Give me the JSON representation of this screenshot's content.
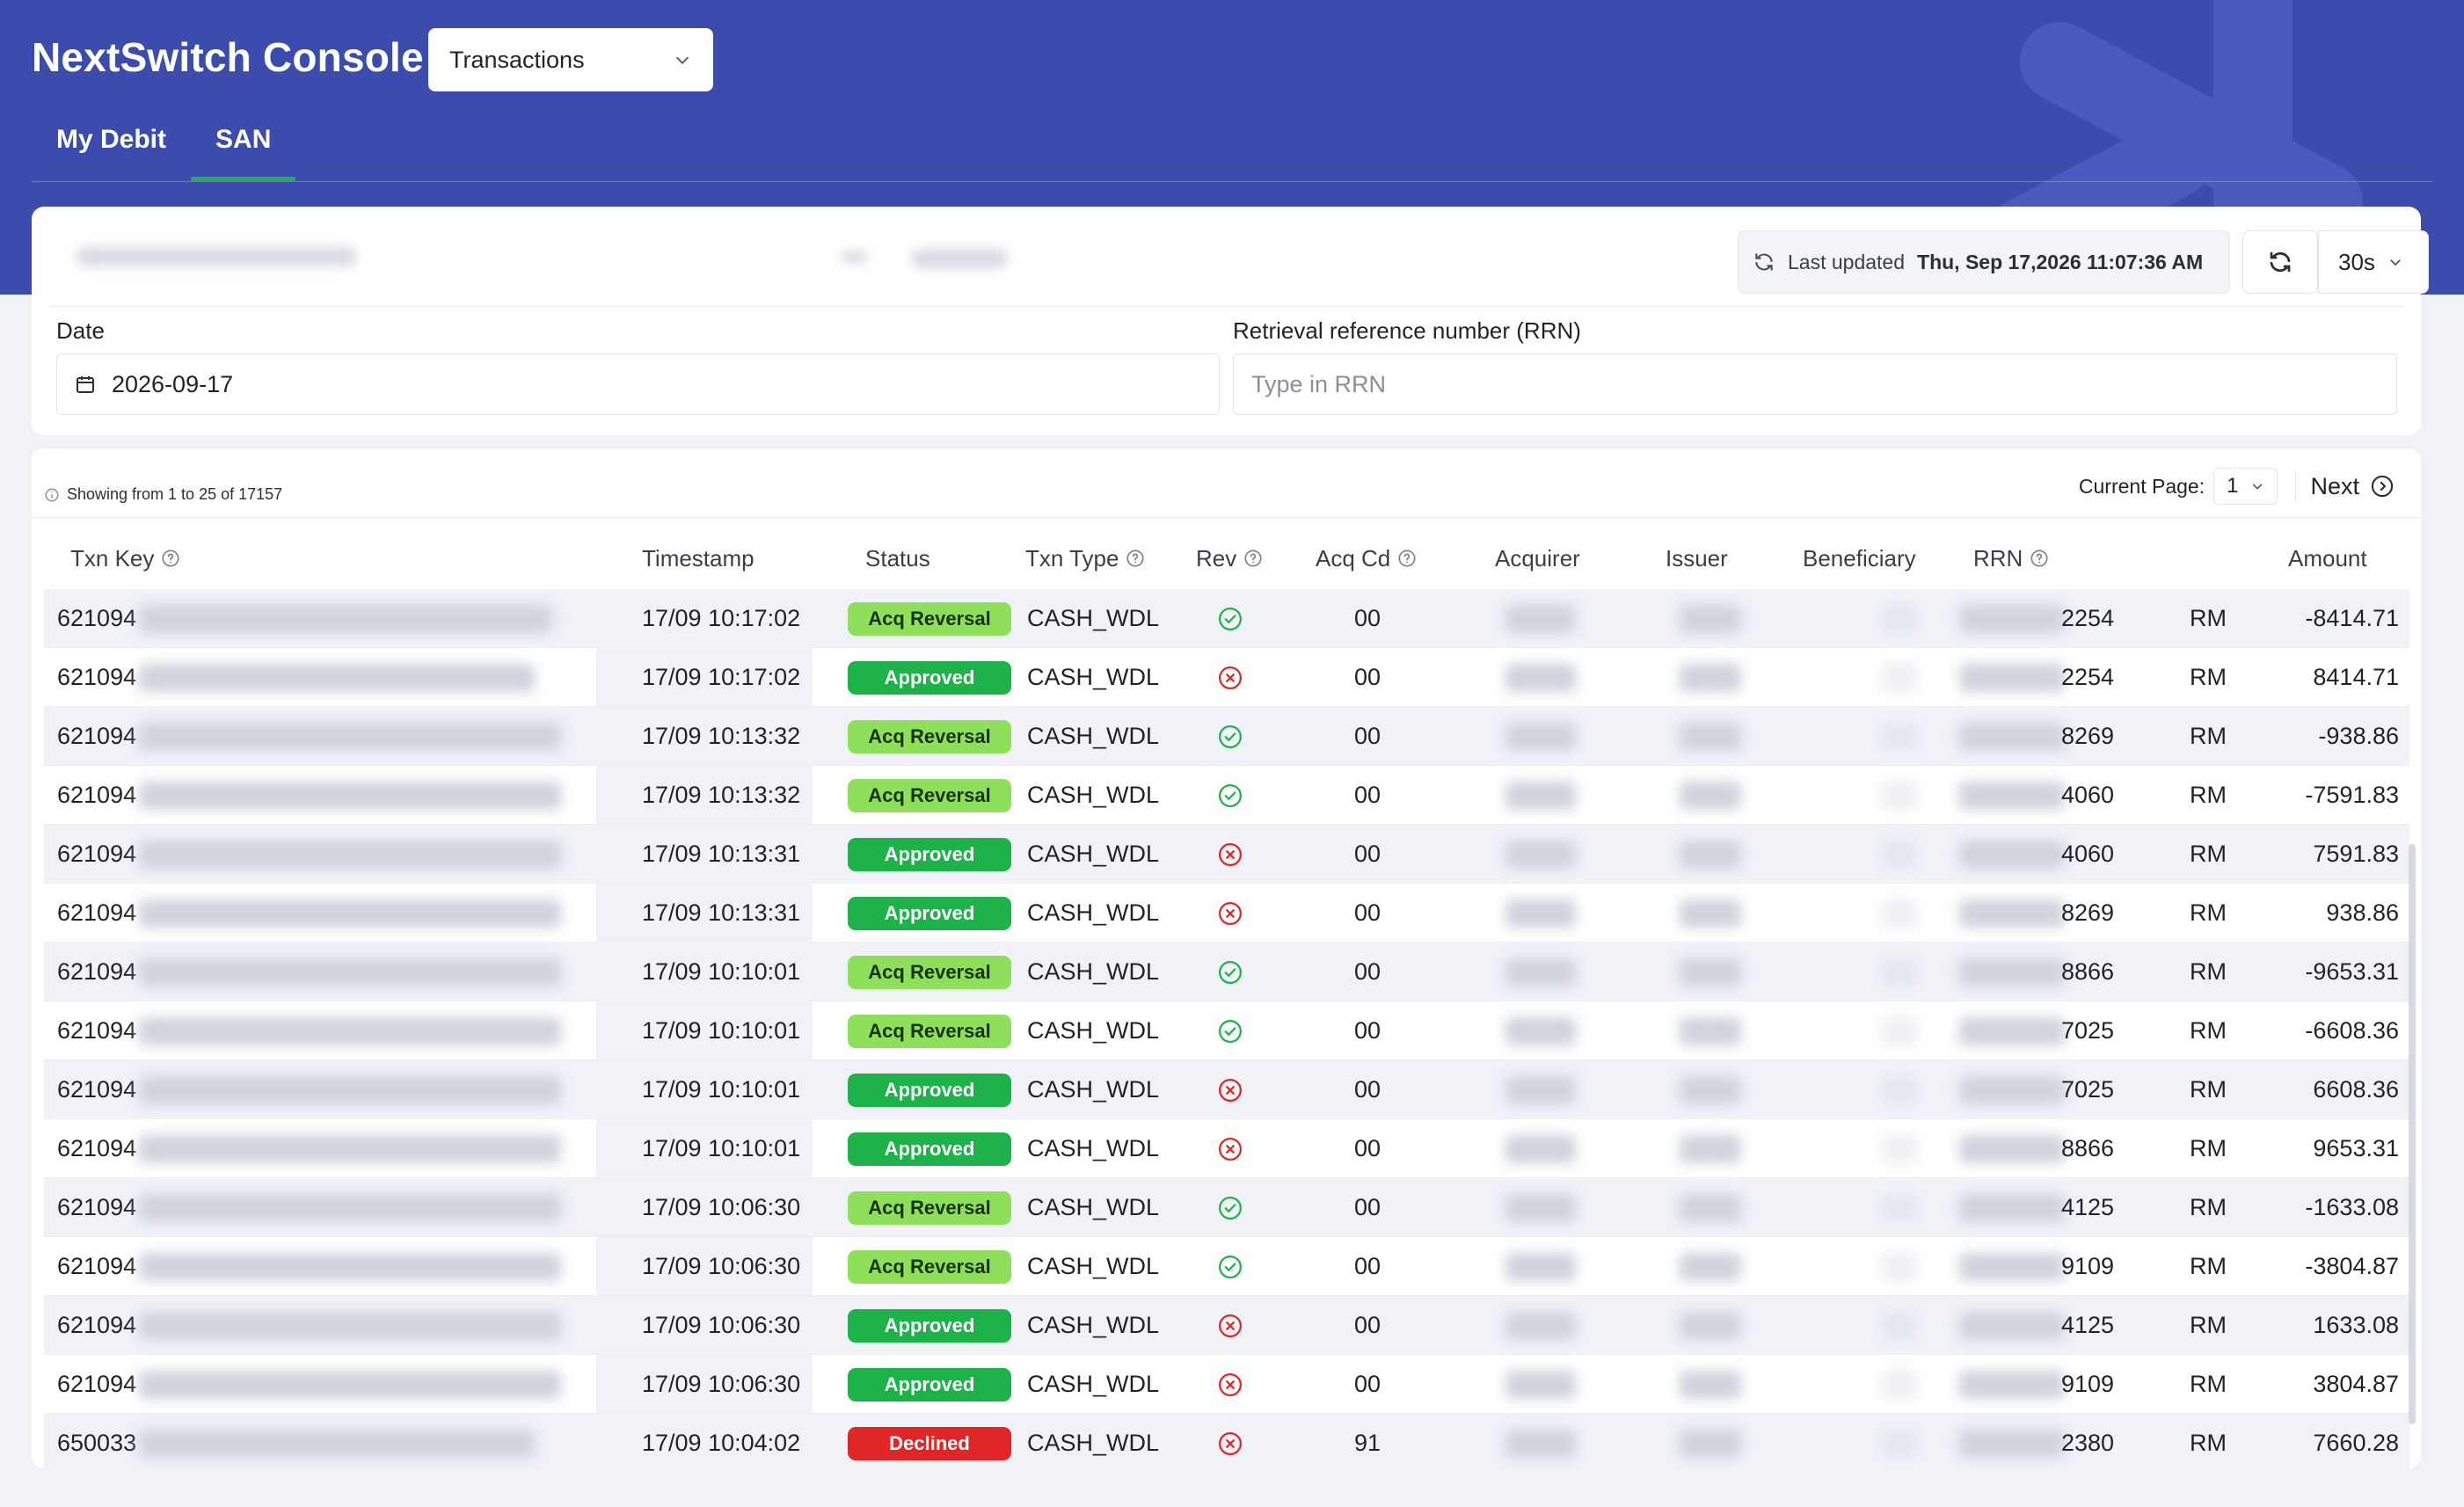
{
  "header": {
    "app_title": "NextSwitch Console",
    "module_select": "Transactions",
    "tabs": [
      {
        "label": "My Debit",
        "active": false
      },
      {
        "label": "SAN",
        "active": true
      }
    ]
  },
  "filters": {
    "last_updated_prefix": "Last updated",
    "last_updated_value": "Thu, Sep 17,2026 11:07:36 AM",
    "refresh_interval": "30s",
    "date_label": "Date",
    "date_value": "2026-09-17",
    "rrn_label": "Retrieval reference number (RRN)",
    "rrn_placeholder": "Type in RRN"
  },
  "table": {
    "showing_text": "Showing from 1 to 25 of 17157",
    "current_page_label": "Current Page:",
    "current_page": "1",
    "next_label": "Next",
    "columns": [
      "Txn Key",
      "Timestamp",
      "Status",
      "Txn Type",
      "Rev",
      "Acq Cd",
      "Acquirer",
      "Issuer",
      "Beneficiary",
      "RRN",
      "Amount"
    ],
    "rows": [
      {
        "txn_key": "621094",
        "timestamp": "17/09 10:17:02",
        "status": "Acq Reversal",
        "txn_type": "CASH_WDL",
        "rev": "check",
        "acq_cd": "00",
        "rrn": "2254",
        "currency": "RM",
        "amount": "-8414.71"
      },
      {
        "txn_key": "621094",
        "timestamp": "17/09 10:17:02",
        "status": "Approved",
        "txn_type": "CASH_WDL",
        "rev": "cross",
        "acq_cd": "00",
        "rrn": "2254",
        "currency": "RM",
        "amount": "8414.71"
      },
      {
        "txn_key": "621094",
        "timestamp": "17/09 10:13:32",
        "status": "Acq Reversal",
        "txn_type": "CASH_WDL",
        "rev": "check",
        "acq_cd": "00",
        "rrn": "8269",
        "currency": "RM",
        "amount": "-938.86"
      },
      {
        "txn_key": "621094",
        "timestamp": "17/09 10:13:32",
        "status": "Acq Reversal",
        "txn_type": "CASH_WDL",
        "rev": "check",
        "acq_cd": "00",
        "rrn": "4060",
        "currency": "RM",
        "amount": "-7591.83"
      },
      {
        "txn_key": "621094",
        "timestamp": "17/09 10:13:31",
        "status": "Approved",
        "txn_type": "CASH_WDL",
        "rev": "cross",
        "acq_cd": "00",
        "rrn": "4060",
        "currency": "RM",
        "amount": "7591.83"
      },
      {
        "txn_key": "621094",
        "timestamp": "17/09 10:13:31",
        "status": "Approved",
        "txn_type": "CASH_WDL",
        "rev": "cross",
        "acq_cd": "00",
        "rrn": "8269",
        "currency": "RM",
        "amount": "938.86"
      },
      {
        "txn_key": "621094",
        "timestamp": "17/09 10:10:01",
        "status": "Acq Reversal",
        "txn_type": "CASH_WDL",
        "rev": "check",
        "acq_cd": "00",
        "rrn": "8866",
        "currency": "RM",
        "amount": "-9653.31"
      },
      {
        "txn_key": "621094",
        "timestamp": "17/09 10:10:01",
        "status": "Acq Reversal",
        "txn_type": "CASH_WDL",
        "rev": "check",
        "acq_cd": "00",
        "rrn": "7025",
        "currency": "RM",
        "amount": "-6608.36"
      },
      {
        "txn_key": "621094",
        "timestamp": "17/09 10:10:01",
        "status": "Approved",
        "txn_type": "CASH_WDL",
        "rev": "cross",
        "acq_cd": "00",
        "rrn": "7025",
        "currency": "RM",
        "amount": "6608.36"
      },
      {
        "txn_key": "621094",
        "timestamp": "17/09 10:10:01",
        "status": "Approved",
        "txn_type": "CASH_WDL",
        "rev": "cross",
        "acq_cd": "00",
        "rrn": "8866",
        "currency": "RM",
        "amount": "9653.31"
      },
      {
        "txn_key": "621094",
        "timestamp": "17/09 10:06:30",
        "status": "Acq Reversal",
        "txn_type": "CASH_WDL",
        "rev": "check",
        "acq_cd": "00",
        "rrn": "4125",
        "currency": "RM",
        "amount": "-1633.08"
      },
      {
        "txn_key": "621094",
        "timestamp": "17/09 10:06:30",
        "status": "Acq Reversal",
        "txn_type": "CASH_WDL",
        "rev": "check",
        "acq_cd": "00",
        "rrn": "9109",
        "currency": "RM",
        "amount": "-3804.87"
      },
      {
        "txn_key": "621094",
        "timestamp": "17/09 10:06:30",
        "status": "Approved",
        "txn_type": "CASH_WDL",
        "rev": "cross",
        "acq_cd": "00",
        "rrn": "4125",
        "currency": "RM",
        "amount": "1633.08"
      },
      {
        "txn_key": "621094",
        "timestamp": "17/09 10:06:30",
        "status": "Approved",
        "txn_type": "CASH_WDL",
        "rev": "cross",
        "acq_cd": "00",
        "rrn": "9109",
        "currency": "RM",
        "amount": "3804.87"
      },
      {
        "txn_key": "650033",
        "timestamp": "17/09 10:04:02",
        "status": "Declined",
        "txn_type": "CASH_WDL",
        "rev": "cross",
        "acq_cd": "91",
        "rrn": "2380",
        "currency": "RM",
        "amount": "7660.28"
      }
    ]
  },
  "colors": {
    "brand": "#3b4cad",
    "tab_underline": "#22b04b",
    "acq_reversal": "#8ee05b",
    "approved": "#1db34a",
    "declined": "#e02626",
    "rev_check": "#1db34a",
    "rev_cross": "#e02626"
  },
  "icons": {
    "module_chevron": "chevron-down-icon",
    "refresh": "refresh-icon",
    "calendar": "calendar-icon",
    "info": "info-icon",
    "help": "help-circle-icon",
    "next": "chevron-right-circle-icon"
  }
}
